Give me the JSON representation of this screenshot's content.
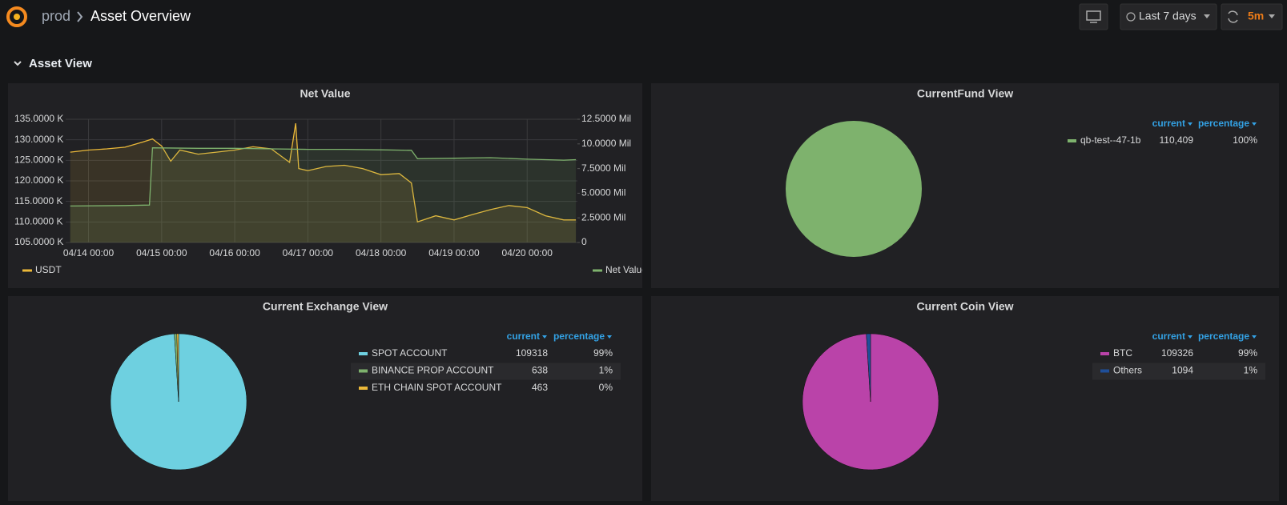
{
  "header": {
    "breadcrumb_parent": "prod",
    "title": "Asset Overview",
    "time_range": "Last 7 days",
    "refresh": "5m"
  },
  "row": {
    "title": "Asset View"
  },
  "chart_data": [
    {
      "type": "line",
      "title": "Net Value",
      "xlim": [
        "04/13 16:30",
        "04/20 16:30"
      ],
      "xticks": [
        "04/14 00:00",
        "04/15 00:00",
        "04/16 00:00",
        "04/17 00:00",
        "04/18 00:00",
        "04/19 00:00",
        "04/20 00:00"
      ],
      "ylim": [
        105000,
        135000
      ],
      "yticks": [
        {
          "value": 105000,
          "label": "105.0000 K"
        },
        {
          "value": 110000,
          "label": "110.0000 K"
        },
        {
          "value": 115000,
          "label": "115.0000 K"
        },
        {
          "value": 120000,
          "label": "120.0000 K"
        },
        {
          "value": 125000,
          "label": "125.0000 K"
        },
        {
          "value": 130000,
          "label": "130.0000 K"
        },
        {
          "value": 135000,
          "label": "135.0000 K"
        }
      ],
      "y2lim": [
        0,
        12500000
      ],
      "y2ticks": [
        0,
        {
          "value": 2500000,
          "label": "2.5000 Mil"
        },
        {
          "value": 5000000,
          "label": "5.0000 Mil"
        },
        {
          "value": 7500000,
          "label": "7.5000 Mil"
        },
        {
          "value": 10000000,
          "label": "10.0000 Mil"
        },
        {
          "value": 12500000,
          "label": "12.5000 Mil"
        }
      ],
      "grid": true,
      "series": [
        {
          "name": "USDT",
          "color": "#eab839",
          "x": [
            "04/13 18:00",
            "04/14 00:00",
            "04/14 06:00",
            "04/14 12:00",
            "04/14 18:00",
            "04/14 21:00",
            "04/15 00:00",
            "04/15 03:00",
            "04/15 06:00",
            "04/15 12:00",
            "04/15 18:00",
            "04/16 00:00",
            "04/16 06:00",
            "04/16 12:00",
            "04/16 18:00",
            "04/16 20:00",
            "04/16 21:00",
            "04/17 00:00",
            "04/17 06:00",
            "04/17 12:00",
            "04/17 18:00",
            "04/18 00:00",
            "04/18 06:00",
            "04/18 10:00",
            "04/18 12:00",
            "04/18 18:00",
            "04/19 00:00",
            "04/19 06:00",
            "04/19 12:00",
            "04/19 18:00",
            "04/20 00:00",
            "04/20 06:00",
            "04/20 12:00",
            "04/20 16:00"
          ],
          "values": [
            127000,
            127500,
            127800,
            128200,
            129500,
            130200,
            128500,
            124800,
            127500,
            126500,
            127000,
            127500,
            128300,
            127800,
            124500,
            134000,
            123000,
            122500,
            123500,
            123800,
            123000,
            121500,
            121800,
            119500,
            110000,
            111500,
            110500,
            111800,
            113000,
            114000,
            113500,
            111500,
            110500,
            110500
          ]
        },
        {
          "name": "Net Value",
          "color": "#7eb26d",
          "axis": "y2",
          "x": [
            "04/13 18:00",
            "04/14 12:00",
            "04/14 20:00",
            "04/14 21:00",
            "04/15 12:00",
            "04/16 00:00",
            "04/16 12:00",
            "04/17 00:00",
            "04/17 12:00",
            "04/18 00:00",
            "04/18 10:00",
            "04/18 12:00",
            "04/19 00:00",
            "04/19 12:00",
            "04/20 00:00",
            "04/20 12:00",
            "04/20 16:00"
          ],
          "values": [
            3700000,
            3750000,
            3800000,
            9600000,
            9550000,
            9550000,
            9500000,
            9450000,
            9450000,
            9400000,
            9350000,
            8500000,
            8550000,
            8600000,
            8450000,
            8350000,
            8400000
          ]
        }
      ]
    },
    {
      "type": "pie",
      "title": "CurrentFund View",
      "legend_columns": [
        "current",
        "percentage"
      ],
      "categories": [
        "qb-test--47-1b"
      ],
      "values": [
        110409
      ],
      "value_labels": [
        "110,409"
      ],
      "percentages": [
        "100%"
      ],
      "colors": [
        "#7eb26d"
      ]
    },
    {
      "type": "pie",
      "title": "Current Exchange View",
      "legend_columns": [
        "current",
        "percentage"
      ],
      "categories": [
        "SPOT ACCOUNT",
        "BINANCE PROP ACCOUNT",
        "ETH CHAIN SPOT ACCOUNT"
      ],
      "values": [
        109318,
        638,
        463
      ],
      "percentages": [
        "99%",
        "1%",
        "0%"
      ],
      "colors": [
        "#6ed0e0",
        "#7eb26d",
        "#eab839"
      ]
    },
    {
      "type": "pie",
      "title": "Current Coin View",
      "legend_columns": [
        "current",
        "percentage"
      ],
      "categories": [
        "BTC",
        "Others"
      ],
      "values": [
        109326,
        1094
      ],
      "percentages": [
        "99%",
        "1%"
      ],
      "colors": [
        "#ba43a9",
        "#1f4f9a"
      ]
    }
  ]
}
